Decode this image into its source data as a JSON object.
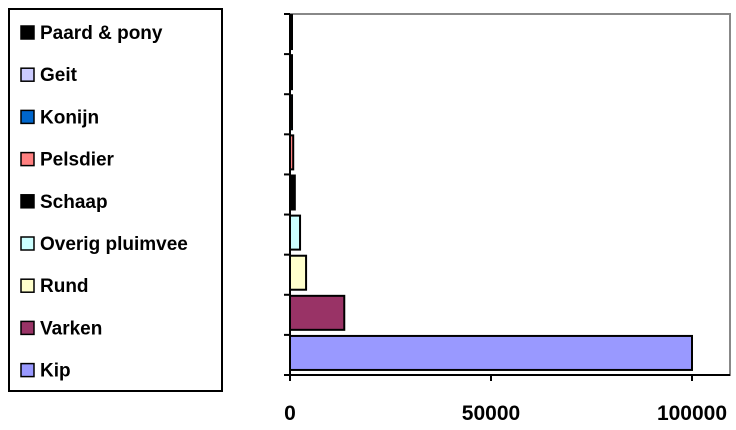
{
  "chart_data": {
    "type": "bar",
    "orientation": "horizontal",
    "categories": [
      "Kip",
      "Varken",
      "Rund",
      "Overig pluimvee",
      "Schaap",
      "Pelsdier",
      "Konijn",
      "Geit",
      "Paard & pony"
    ],
    "values": [
      100000,
      13500,
      4000,
      2500,
      1200,
      800,
      500,
      300,
      100
    ],
    "colors": [
      "#9999ff",
      "#993366",
      "#ffffcc",
      "#ccffff",
      "#000000",
      "#ff8080",
      "#0066cc",
      "#ccccff",
      "#000000"
    ],
    "xlim": [
      0,
      110000
    ],
    "x_ticks": [
      "0",
      "50000",
      "100000"
    ],
    "x_tick_values": [
      0,
      50000,
      100000
    ],
    "grid": false,
    "legend_position": "left",
    "legend": [
      "Paard & pony",
      "Geit",
      "Konijn",
      "Pelsdier",
      "Schaap",
      "Overig pluimvee",
      "Rund",
      "Varken",
      "Kip"
    ],
    "title": "",
    "xlabel": "",
    "ylabel": ""
  }
}
